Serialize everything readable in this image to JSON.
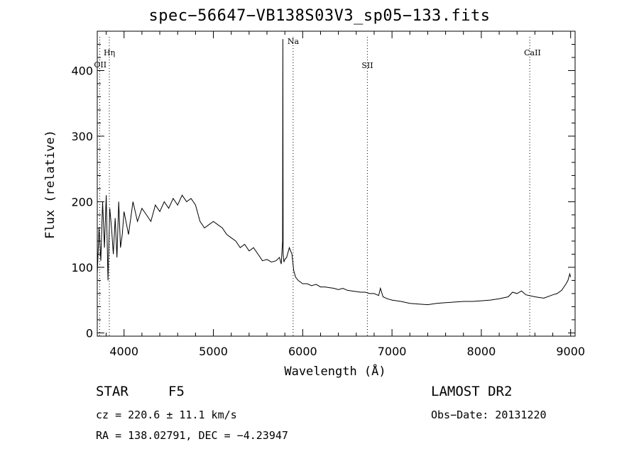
{
  "chart_data": {
    "type": "line",
    "title": "spec−56647−VB138S03V3_sp05−133.fits",
    "xlabel": "Wavelength (Å)",
    "ylabel": "Flux (relative)",
    "xlim": [
      3700,
      9050
    ],
    "ylim": [
      -5,
      460
    ],
    "xticks": [
      4000,
      5000,
      6000,
      7000,
      8000,
      9000
    ],
    "yticks": [
      0,
      100,
      200,
      300,
      400
    ],
    "grid": false,
    "series": [
      {
        "x": [
          3700,
          3720,
          3740,
          3760,
          3780,
          3800,
          3820,
          3840,
          3860,
          3880,
          3900,
          3920,
          3940,
          3960,
          3980,
          4000,
          4050,
          4100,
          4150,
          4200,
          4250,
          4300,
          4350,
          4400,
          4450,
          4500,
          4550,
          4600,
          4650,
          4700,
          4750,
          4800,
          4850,
          4900,
          4950,
          5000,
          5050,
          5100,
          5150,
          5200,
          5250,
          5300,
          5350,
          5400,
          5450,
          5500,
          5550,
          5600,
          5650,
          5700,
          5740,
          5760,
          5775,
          5778,
          5781,
          5790,
          5800,
          5820,
          5850,
          5880,
          5900,
          5920,
          5950,
          6000,
          6050,
          6100,
          6150,
          6200,
          6250,
          6300,
          6350,
          6400,
          6450,
          6500,
          6550,
          6600,
          6650,
          6700,
          6750,
          6800,
          6850,
          6870,
          6900,
          6950,
          7000,
          7100,
          7200,
          7300,
          7400,
          7500,
          7600,
          7700,
          7800,
          7900,
          8000,
          8100,
          8200,
          8300,
          8350,
          8400,
          8450,
          8500,
          8600,
          8700,
          8800,
          8850,
          8900,
          8950,
          8970,
          8990,
          9000
        ],
        "y": [
          90,
          160,
          110,
          200,
          130,
          210,
          80,
          190,
          160,
          120,
          175,
          115,
          200,
          130,
          150,
          185,
          150,
          200,
          170,
          190,
          180,
          170,
          195,
          185,
          200,
          190,
          205,
          195,
          210,
          200,
          205,
          195,
          170,
          160,
          165,
          170,
          165,
          160,
          150,
          145,
          140,
          130,
          135,
          125,
          130,
          120,
          110,
          112,
          108,
          110,
          115,
          105,
          140,
          448,
          120,
          108,
          112,
          115,
          130,
          120,
          95,
          85,
          80,
          75,
          75,
          72,
          74,
          70,
          70,
          69,
          68,
          66,
          68,
          65,
          64,
          63,
          62,
          62,
          60,
          60,
          57,
          68,
          55,
          52,
          50,
          48,
          45,
          44,
          43,
          45,
          46,
          47,
          48,
          48,
          49,
          50,
          52,
          55,
          62,
          60,
          64,
          58,
          55,
          53,
          58,
          60,
          65,
          75,
          80,
          90,
          85
        ],
        "note": ""
      }
    ],
    "lines": [
      {
        "label": "OII",
        "x": 3727
      },
      {
        "label": "Hη",
        "x": 3835
      },
      {
        "label": "Na",
        "x": 5893
      },
      {
        "label": "SII",
        "x": 6724
      },
      {
        "label": "CaII",
        "x": 8542
      }
    ]
  },
  "info": {
    "class_label": "STAR",
    "subclass": "F5",
    "survey": "LAMOST DR2",
    "cz": "cz = 220.6 ± 11.1 km/s",
    "obs_date": "Obs−Date: 20131220",
    "coords": "RA = 138.02791, DEC =  −4.23947"
  }
}
